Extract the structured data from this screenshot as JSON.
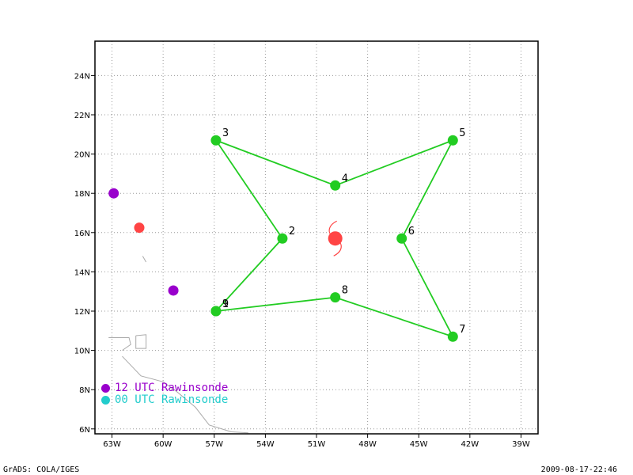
{
  "map": {
    "lon_range": [
      -64,
      -38
    ],
    "lat_range": [
      5.75,
      25.75
    ],
    "x_ticks": [
      -63,
      -60,
      -57,
      -54,
      -51,
      -48,
      -45,
      -42,
      -39
    ],
    "x_tick_labels": [
      "63W",
      "60W",
      "57W",
      "54W",
      "51W",
      "48W",
      "45W",
      "42W",
      "39W"
    ],
    "y_ticks": [
      6,
      8,
      10,
      12,
      14,
      16,
      18,
      20,
      22,
      24
    ],
    "y_tick_labels": [
      "6N",
      "8N",
      "10N",
      "12N",
      "14N",
      "16N",
      "18N",
      "20N",
      "22N",
      "24N"
    ],
    "grid": true,
    "grid_color": "#999999"
  },
  "flight_track": {
    "color": "#22cc22",
    "points": [
      {
        "label": "1",
        "lon": -56.9,
        "lat": 12.0
      },
      {
        "label": "2",
        "lon": -53.0,
        "lat": 15.7
      },
      {
        "label": "3",
        "lon": -56.9,
        "lat": 20.7
      },
      {
        "label": "4",
        "lon": -49.9,
        "lat": 18.4
      },
      {
        "label": "5",
        "lon": -43.0,
        "lat": 20.7
      },
      {
        "label": "6",
        "lon": -46.0,
        "lat": 15.7
      },
      {
        "label": "7",
        "lon": -43.0,
        "lat": 10.7
      },
      {
        "label": "8",
        "lon": -49.9,
        "lat": 12.7
      },
      {
        "label": "9",
        "lon": -56.9,
        "lat": 12.0
      }
    ]
  },
  "storm_center": {
    "lon": -49.9,
    "lat": 15.7,
    "color": "#ff4444"
  },
  "rawinsondes": {
    "utc12": {
      "color": "#9900cc",
      "points": [
        {
          "lon": -62.9,
          "lat": 18.0
        },
        {
          "lon": -59.4,
          "lat": 13.05
        }
      ]
    },
    "utc00": {
      "color": "#22cccc",
      "points": []
    }
  },
  "other_stations": [
    {
      "lon": -61.4,
      "lat": 16.25,
      "color": "#ff4444"
    }
  ],
  "coast_color": "#aaaaaa",
  "legend": {
    "utc12_label": "12 UTC Rawinsonde",
    "utc12_color": "#9900cc",
    "utc00_label": "00 UTC Rawinsonde",
    "utc00_color": "#22cccc"
  },
  "footer": {
    "left": "GrADS: COLA/IGES",
    "right": "2009-08-17-22:46"
  }
}
